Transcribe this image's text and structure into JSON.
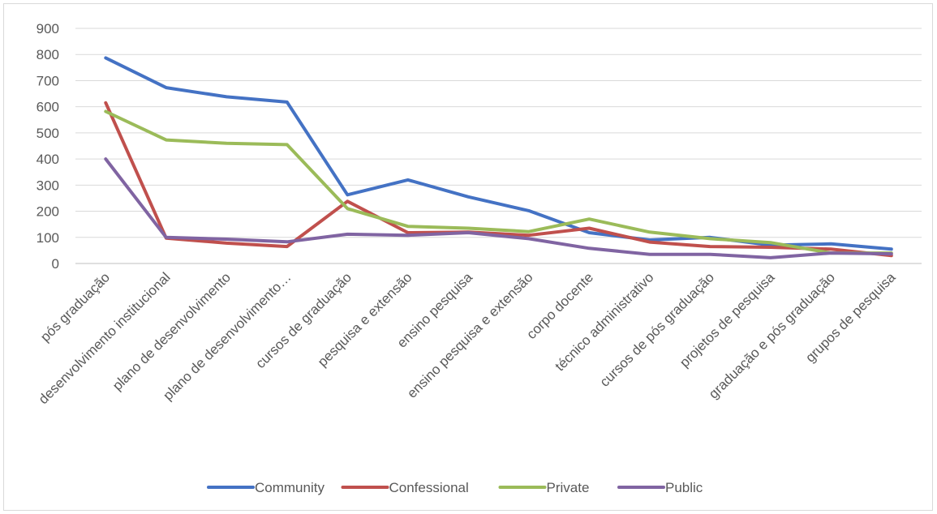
{
  "chart_data": {
    "type": "line",
    "title": "",
    "xlabel": "",
    "ylabel": "",
    "ylim": [
      0,
      900
    ],
    "yticks": [
      0,
      100,
      200,
      300,
      400,
      500,
      600,
      700,
      800,
      900
    ],
    "grid": true,
    "legend": "bottom",
    "categories": [
      "pós graduação",
      "desenvolvimento institucional",
      "plano de desenvolvimento",
      "plano de desenvolvimento…",
      "cursos de graduação",
      "pesquisa e extensão",
      "ensino pesquisa",
      "ensino pesquisa e extensão",
      "corpo docente",
      "técnico administrativo",
      "cursos de pós graduação",
      "projetos de pesquisa",
      "graduação e pós graduação",
      "grupos de pesquisa"
    ],
    "series": [
      {
        "name": "Community",
        "color": "#4472c4",
        "values": [
          787,
          673,
          638,
          618,
          263,
          320,
          255,
          202,
          118,
          90,
          100,
          70,
          75,
          55
        ]
      },
      {
        "name": "Confessional",
        "color": "#c0504d",
        "values": [
          615,
          97,
          78,
          65,
          238,
          118,
          120,
          108,
          135,
          82,
          65,
          62,
          55,
          30
        ]
      },
      {
        "name": "Private",
        "color": "#9bbb59",
        "values": [
          582,
          473,
          460,
          455,
          210,
          142,
          135,
          122,
          170,
          120,
          95,
          80,
          40,
          40
        ]
      },
      {
        "name": "Public",
        "color": "#8064a2",
        "values": [
          400,
          100,
          93,
          83,
          112,
          108,
          118,
          95,
          58,
          35,
          35,
          22,
          40,
          37
        ]
      }
    ]
  }
}
